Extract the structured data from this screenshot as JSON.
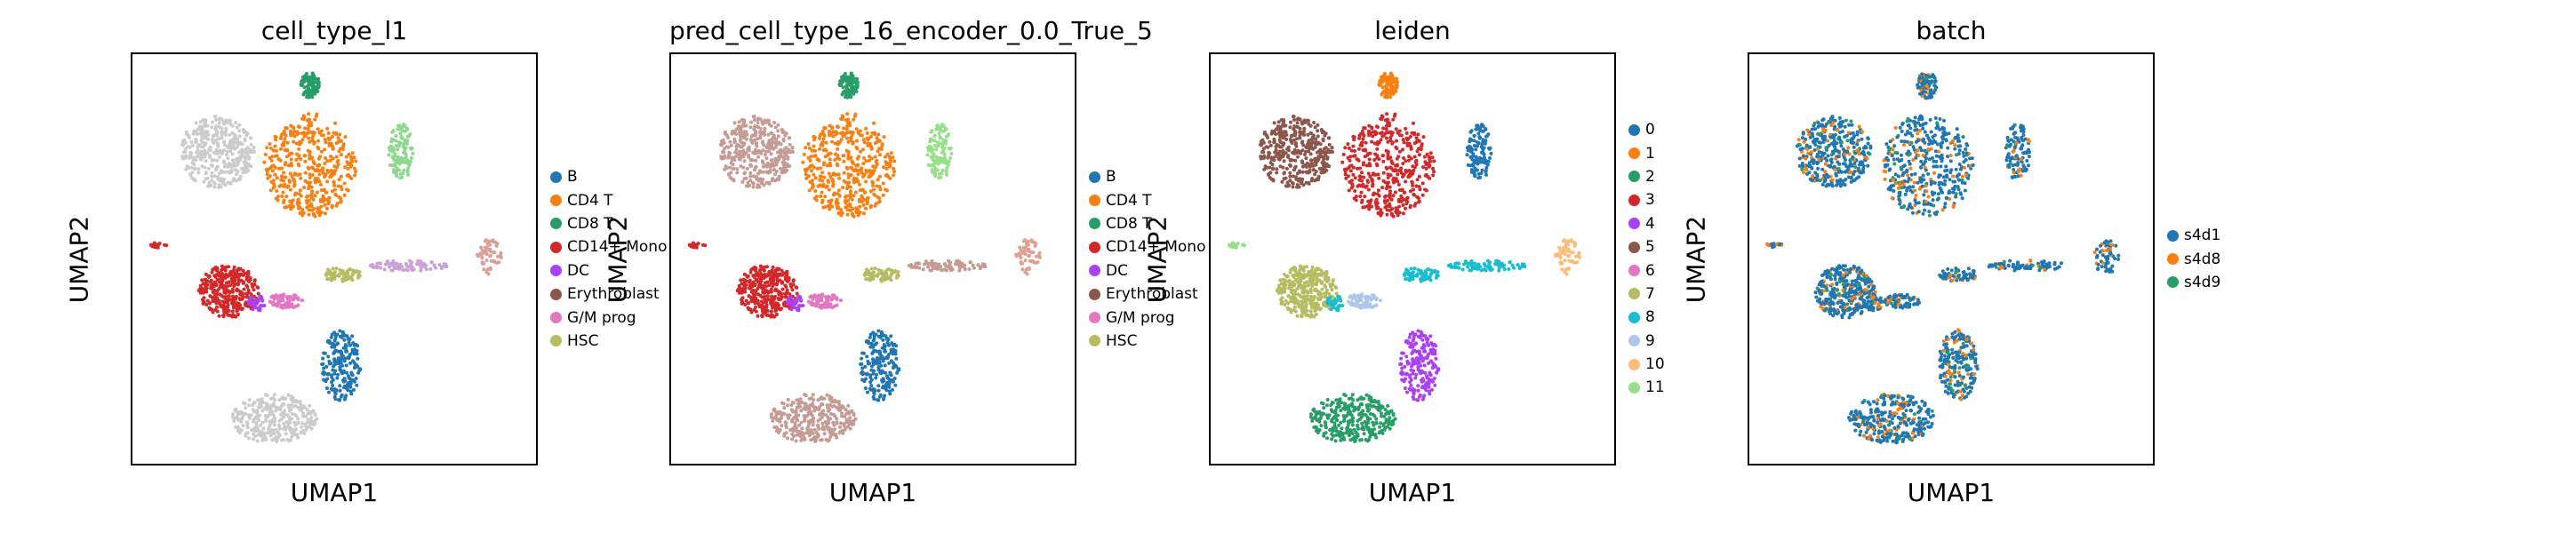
{
  "chart_data": [
    {
      "type": "scatter",
      "title": "cell_type_l1",
      "xlabel": "UMAP1",
      "ylabel": "UMAP2",
      "legend": "right",
      "grid": false,
      "legend_items": [
        {
          "label": "B",
          "color": "#1f77b4"
        },
        {
          "label": "CD4 T",
          "color": "#ff7f0e"
        },
        {
          "label": "CD8 T",
          "color": "#279e68"
        },
        {
          "label": "CD14+ Mono",
          "color": "#d62728"
        },
        {
          "label": "DC",
          "color": "#aa40fc"
        },
        {
          "label": "Erythroblast",
          "color": "#8c564b"
        },
        {
          "label": "G/M prog",
          "color": "#e377c2"
        },
        {
          "label": "HSC",
          "color": "#b5bd61"
        }
      ],
      "regions": [
        "#cccccc",
        "#ff7f0e",
        "#279e68",
        "#8fd98f",
        "#d62728",
        "#e377c2",
        "#aa40fc",
        "#b5bd61",
        "#c9a3d8",
        "#d9a097",
        "#1f77b4",
        "#cccccc",
        "#d62728"
      ]
    },
    {
      "type": "scatter",
      "title": "pred_cell_type_16_encoder_0.0_True_5",
      "xlabel": "UMAP1",
      "ylabel": "UMAP2",
      "legend": "right",
      "grid": false,
      "legend_items": [
        {
          "label": "B",
          "color": "#1f77b4"
        },
        {
          "label": "CD4 T",
          "color": "#ff7f0e"
        },
        {
          "label": "CD8 T",
          "color": "#279e68"
        },
        {
          "label": "CD14+ Mono",
          "color": "#d62728"
        },
        {
          "label": "DC",
          "color": "#aa40fc"
        },
        {
          "label": "Erythroblast",
          "color": "#8c564b"
        },
        {
          "label": "G/M prog",
          "color": "#e377c2"
        },
        {
          "label": "HSC",
          "color": "#b5bd61"
        }
      ],
      "regions": [
        "#c49c94",
        "#ff7f0e",
        "#279e68",
        "#98df8a",
        "#d62728",
        "#e377c2",
        "#aa40fc",
        "#b5bd61",
        "#c49c94",
        "#e0a090",
        "#1f77b4",
        "#c49c94",
        "#d62728"
      ]
    },
    {
      "type": "scatter",
      "title": "leiden",
      "xlabel": "UMAP1",
      "ylabel": "UMAP2",
      "legend": "right",
      "grid": false,
      "legend_items": [
        {
          "label": "0",
          "color": "#1f77b4"
        },
        {
          "label": "1",
          "color": "#ff7f0e"
        },
        {
          "label": "2",
          "color": "#279e68"
        },
        {
          "label": "3",
          "color": "#d62728"
        },
        {
          "label": "4",
          "color": "#aa40fc"
        },
        {
          "label": "5",
          "color": "#8c564b"
        },
        {
          "label": "6",
          "color": "#e377c2"
        },
        {
          "label": "7",
          "color": "#b5bd61"
        },
        {
          "label": "8",
          "color": "#17becf"
        },
        {
          "label": "9",
          "color": "#aec7e8"
        },
        {
          "label": "10",
          "color": "#ffbb78"
        },
        {
          "label": "11",
          "color": "#98df8a"
        }
      ],
      "regions": [
        "#8c564b",
        "#d62728",
        "#ff7f0e",
        "#1f77b4",
        "#b5bd61",
        "#aec7e8",
        "#17becf",
        "#17becf",
        "#17becf",
        "#ffbb78",
        "#aa40fc",
        "#279e68",
        "#98df8a"
      ]
    },
    {
      "type": "scatter",
      "title": "batch",
      "xlabel": "UMAP1",
      "ylabel": "UMAP2",
      "legend": "right",
      "grid": false,
      "legend_items": [
        {
          "label": "s4d1",
          "color": "#1f77b4"
        },
        {
          "label": "s4d8",
          "color": "#ff7f0e"
        },
        {
          "label": "s4d9",
          "color": "#279e68"
        }
      ],
      "regions": [
        "#1f77b4",
        "#1f77b4",
        "#1f77b4",
        "#1f77b4",
        "#1f77b4",
        "#1f77b4",
        "#1f77b4",
        "#1f77b4",
        "#1f77b4",
        "#1f77b4",
        "#1f77b4",
        "#1f77b4",
        "#1f77b4"
      ]
    }
  ]
}
